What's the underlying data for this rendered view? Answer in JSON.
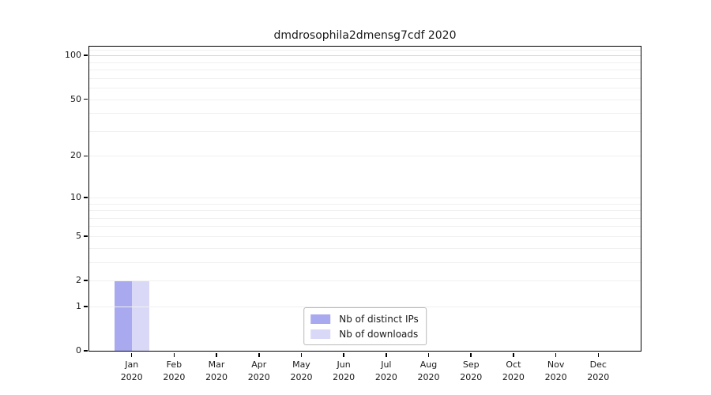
{
  "chart_data": {
    "type": "bar",
    "title": "dmdrosophila2dmensg7cdf 2020",
    "xlabel": "",
    "ylabel": "",
    "categories": [
      "Jan 2020",
      "Feb 2020",
      "Mar 2020",
      "Apr 2020",
      "May 2020",
      "Jun 2020",
      "Jul 2020",
      "Aug 2020",
      "Sep 2020",
      "Oct 2020",
      "Nov 2020",
      "Dec 2020"
    ],
    "x_ticks": [
      {
        "line1": "Jan",
        "line2": "2020"
      },
      {
        "line1": "Feb",
        "line2": "2020"
      },
      {
        "line1": "Mar",
        "line2": "2020"
      },
      {
        "line1": "Apr",
        "line2": "2020"
      },
      {
        "line1": "May",
        "line2": "2020"
      },
      {
        "line1": "Jun",
        "line2": "2020"
      },
      {
        "line1": "Jul",
        "line2": "2020"
      },
      {
        "line1": "Aug",
        "line2": "2020"
      },
      {
        "line1": "Sep",
        "line2": "2020"
      },
      {
        "line1": "Oct",
        "line2": "2020"
      },
      {
        "line1": "Nov",
        "line2": "2020"
      },
      {
        "line1": "Dec",
        "line2": "2020"
      }
    ],
    "series": [
      {
        "name": "Nb of distinct IPs",
        "color": "#a9a9f0",
        "values": [
          2,
          0,
          0,
          0,
          0,
          0,
          0,
          0,
          0,
          0,
          0,
          0
        ]
      },
      {
        "name": "Nb of downloads",
        "color": "#d9d9f7",
        "values": [
          2,
          0,
          0,
          0,
          0,
          0,
          0,
          0,
          0,
          0,
          0,
          0
        ]
      }
    ],
    "y_axis": {
      "scale": "log1p",
      "tick_values": [
        0,
        1,
        2,
        5,
        10,
        20,
        50,
        100
      ],
      "range": [
        0,
        115
      ],
      "minor_gridlines": [
        1,
        2,
        3,
        4,
        5,
        6,
        7,
        8,
        9,
        10,
        20,
        30,
        40,
        50,
        60,
        70,
        80,
        90,
        110
      ],
      "major_gridlines": [
        100
      ]
    },
    "legend": {
      "position": "lower center",
      "entries": [
        "Nb of distinct IPs",
        "Nb of downloads"
      ]
    },
    "grid": true,
    "colors": {
      "background": "#ffffff",
      "axis": "#000000",
      "minor_grid": "#f0f0f0",
      "major_grid": "#d4d4d4",
      "text": "#1a1a1a",
      "legend_border": "#b9b9b9"
    }
  }
}
